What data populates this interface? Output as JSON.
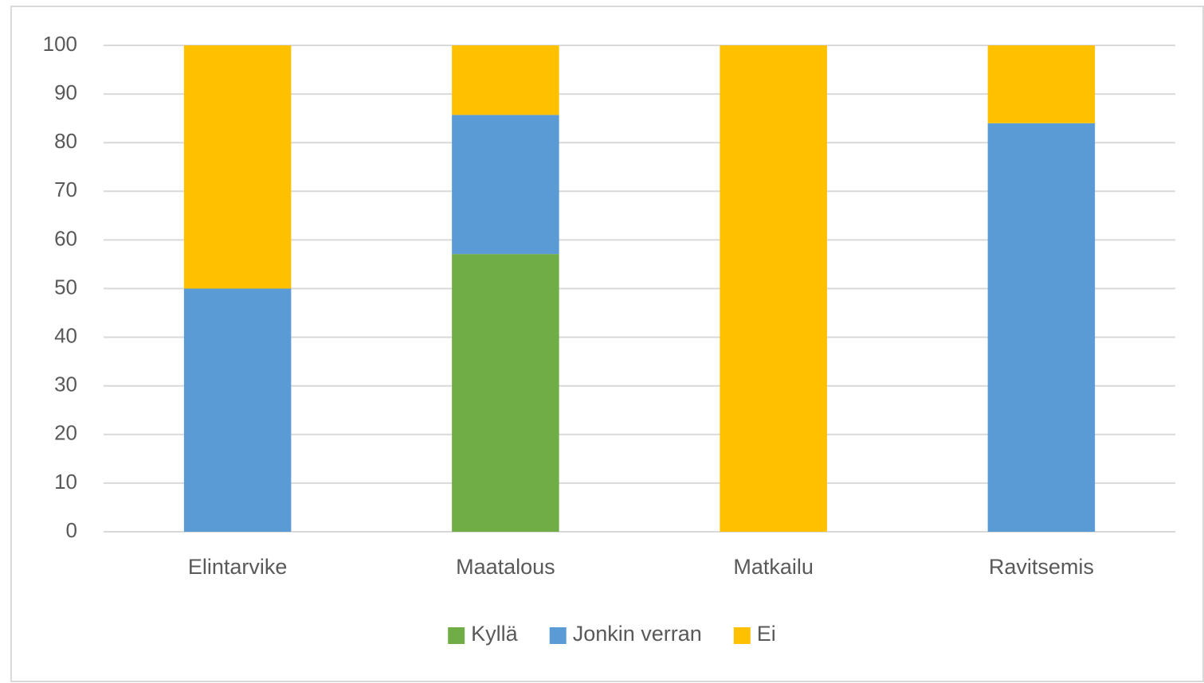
{
  "chart_data": {
    "type": "stacked_bar",
    "categories": [
      "Elintarvike",
      "Maatalous",
      "Matkailu",
      "Ravitsemis"
    ],
    "series": [
      {
        "name": "Kyllä",
        "color": "#70ad47",
        "values": [
          0,
          57.1,
          0,
          0
        ]
      },
      {
        "name": "Jonkin verran",
        "color": "#5b9bd5",
        "values": [
          50,
          28.6,
          0,
          84
        ]
      },
      {
        "name": "Ei",
        "color": "#ffc000",
        "values": [
          50,
          14.3,
          100,
          16
        ]
      }
    ],
    "ylim": [
      0,
      100
    ],
    "yticks": [
      0,
      10,
      20,
      30,
      40,
      50,
      60,
      70,
      80,
      90,
      100
    ],
    "grid": true,
    "legend": "bottom"
  }
}
